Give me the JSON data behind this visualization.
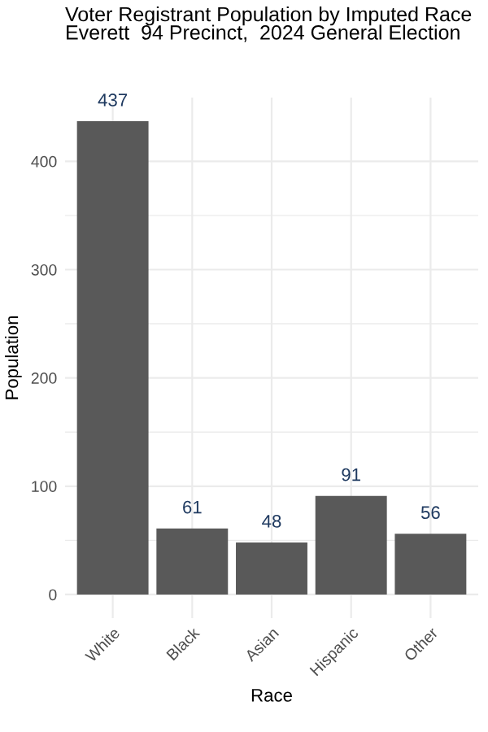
{
  "chart_data": {
    "type": "bar",
    "title": "Voter Registrant Population by Imputed Race\nEverett  94 Precinct,  2024 General Election",
    "xlabel": "Race",
    "ylabel": "Population",
    "categories": [
      "White",
      "Black",
      "Asian",
      "Hispanic",
      "Other"
    ],
    "values": [
      437,
      61,
      48,
      91,
      56
    ],
    "color": "#595959",
    "ylim": [
      -21.85,
      458.85
    ],
    "yticks": [
      0,
      100,
      200,
      300,
      400
    ],
    "grid": true,
    "data_labels": true
  }
}
